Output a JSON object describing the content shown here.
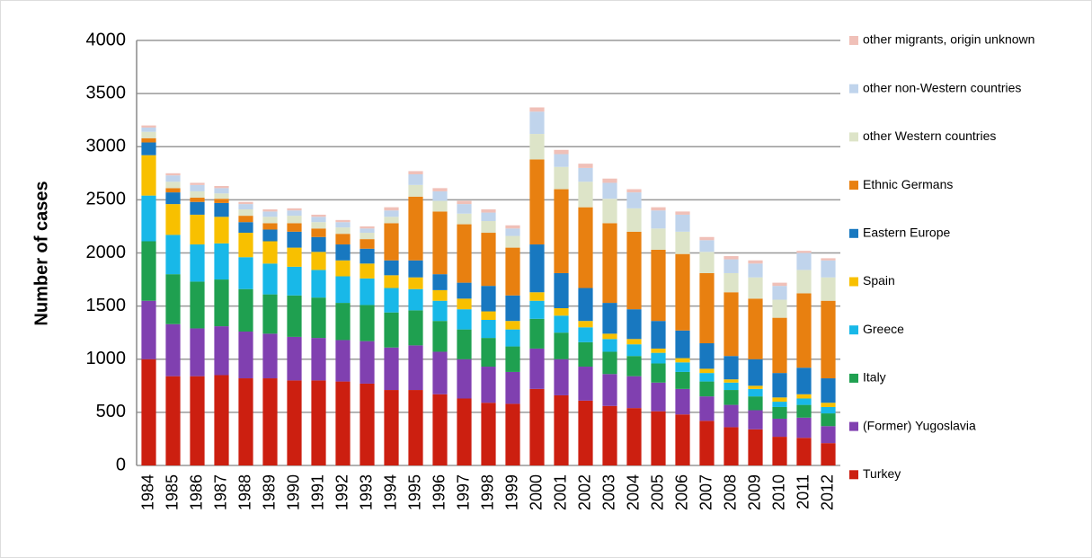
{
  "chart_data": {
    "type": "stacked_bar",
    "y_label": "Number of cases",
    "categories": [
      "1984",
      "1985",
      "1986",
      "1987",
      "1988",
      "1989",
      "1990",
      "1991",
      "1992",
      "1993",
      "1994",
      "1995",
      "1996",
      "1997",
      "1998",
      "1999",
      "2000",
      "2001",
      "2002",
      "2003",
      "2004",
      "2005",
      "2006",
      "2007",
      "2008",
      "2009",
      "2010",
      "2011",
      "2012"
    ],
    "series": [
      {
        "name": "Turkey",
        "color": "#cc1f10",
        "values": [
          1000,
          840,
          840,
          850,
          820,
          820,
          800,
          800,
          790,
          770,
          710,
          710,
          670,
          630,
          590,
          580,
          720,
          660,
          610,
          560,
          540,
          510,
          480,
          420,
          360,
          340,
          270,
          260,
          210
        ]
      },
      {
        "name": "(Former) Yugoslavia",
        "color": "#8040b0",
        "values": [
          550,
          490,
          450,
          460,
          440,
          420,
          410,
          400,
          390,
          400,
          400,
          420,
          400,
          370,
          340,
          300,
          380,
          340,
          320,
          300,
          300,
          270,
          240,
          230,
          210,
          180,
          170,
          190,
          160
        ]
      },
      {
        "name": "Italy",
        "color": "#1fa050",
        "values": [
          560,
          470,
          440,
          440,
          400,
          370,
          390,
          380,
          350,
          340,
          330,
          330,
          290,
          280,
          270,
          240,
          280,
          250,
          230,
          210,
          190,
          180,
          160,
          140,
          140,
          130,
          110,
          120,
          120
        ]
      },
      {
        "name": "Greece",
        "color": "#18b8e8",
        "values": [
          430,
          370,
          350,
          340,
          300,
          290,
          270,
          260,
          250,
          250,
          230,
          200,
          190,
          190,
          170,
          160,
          170,
          160,
          140,
          120,
          110,
          100,
          90,
          80,
          70,
          70,
          50,
          60,
          60
        ]
      },
      {
        "name": "Spain",
        "color": "#f8c000",
        "values": [
          380,
          290,
          280,
          250,
          230,
          210,
          180,
          170,
          150,
          140,
          120,
          110,
          100,
          100,
          80,
          80,
          80,
          70,
          60,
          50,
          50,
          40,
          40,
          40,
          30,
          30,
          40,
          40,
          40
        ]
      },
      {
        "name": "Eastern Europe",
        "color": "#1878c0",
        "values": [
          120,
          110,
          120,
          130,
          100,
          110,
          150,
          140,
          150,
          140,
          140,
          160,
          150,
          150,
          240,
          240,
          450,
          330,
          310,
          290,
          280,
          260,
          260,
          240,
          220,
          250,
          230,
          250,
          230
        ]
      },
      {
        "name": "Ethnic Germans",
        "color": "#e88010",
        "values": [
          40,
          40,
          40,
          40,
          60,
          60,
          80,
          80,
          100,
          90,
          350,
          600,
          590,
          550,
          500,
          450,
          800,
          790,
          760,
          750,
          730,
          670,
          720,
          660,
          600,
          570,
          520,
          700,
          730
        ]
      },
      {
        "name": "other Western countries",
        "color": "#dde4c8",
        "values": [
          60,
          60,
          60,
          50,
          60,
          60,
          70,
          60,
          60,
          60,
          60,
          110,
          100,
          100,
          110,
          110,
          240,
          210,
          240,
          230,
          220,
          200,
          210,
          200,
          180,
          200,
          170,
          220,
          220
        ]
      },
      {
        "name": "other non-Western countries",
        "color": "#c0d4ec",
        "values": [
          40,
          60,
          60,
          50,
          50,
          50,
          50,
          50,
          50,
          40,
          60,
          100,
          90,
          90,
          80,
          70,
          210,
          120,
          130,
          150,
          150,
          170,
          160,
          110,
          130,
          130,
          130,
          160,
          160
        ]
      },
      {
        "name": "other migrants, origin unknown",
        "color": "#f0c0b8",
        "values": [
          20,
          20,
          20,
          20,
          20,
          20,
          20,
          20,
          20,
          20,
          30,
          30,
          30,
          30,
          30,
          30,
          40,
          40,
          40,
          40,
          30,
          30,
          30,
          30,
          30,
          30,
          30,
          20,
          20
        ]
      }
    ],
    "ylim": [
      0,
      4000
    ],
    "yticks": [
      0,
      500,
      1000,
      1500,
      2000,
      2500,
      3000,
      3500,
      4000
    ],
    "grid": true
  }
}
